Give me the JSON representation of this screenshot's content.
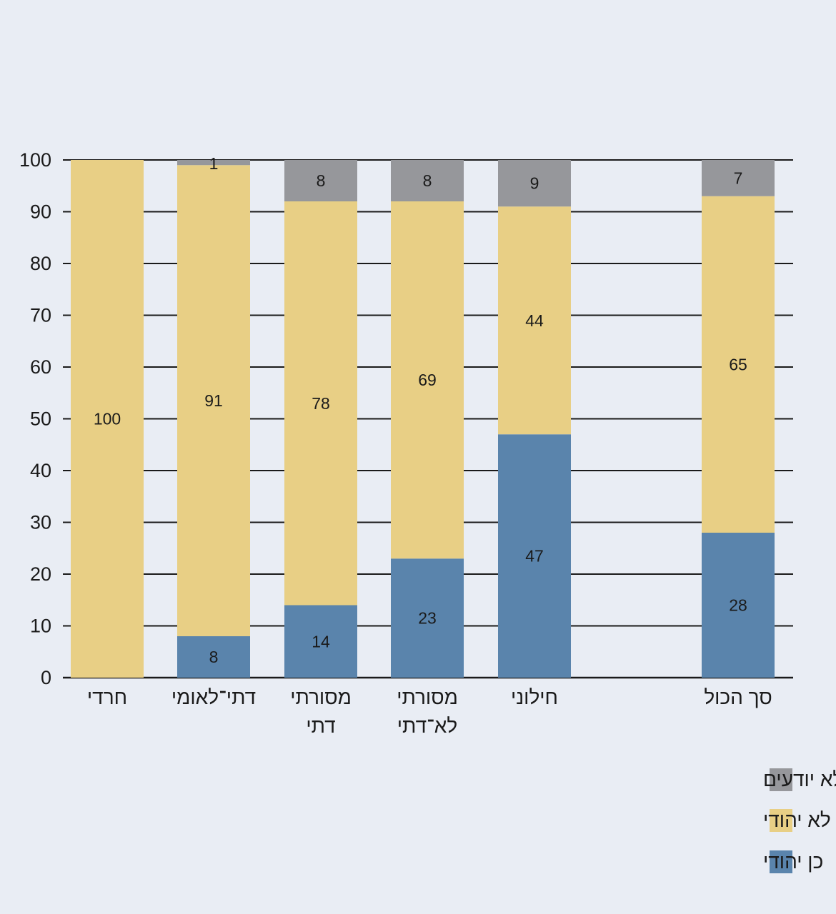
{
  "chart_data": {
    "type": "bar",
    "stacked": true,
    "orientation": "vertical",
    "direction": "rtl",
    "categories": [
      "סך הכול",
      "חילוני",
      "מסורתי לא־דתי",
      "מסורתי דתי",
      "דתי־לאומי",
      "חרדי"
    ],
    "category_lines": [
      [
        "סך הכול"
      ],
      [
        "חילוני"
      ],
      [
        "מסורתי",
        "לא־דתי"
      ],
      [
        "מסורתי",
        "דתי"
      ],
      [
        "דתי־לאומי"
      ],
      [
        "חרדי"
      ]
    ],
    "series": [
      {
        "name": "כן יהודי",
        "color": "#5a84ac",
        "values": [
          28,
          47,
          23,
          14,
          8,
          0
        ]
      },
      {
        "name": "לא יהודי",
        "color": "#e8cf85",
        "values": [
          65,
          44,
          69,
          78,
          91,
          100
        ]
      },
      {
        "name": "לא יודעים",
        "color": "#96979b",
        "values": [
          7,
          9,
          8,
          8,
          1,
          0
        ]
      }
    ],
    "yticks": [
      0,
      10,
      20,
      30,
      40,
      50,
      60,
      70,
      80,
      90,
      100
    ],
    "ylim": [
      0,
      100
    ],
    "grid": true,
    "legend": "bottom-right",
    "title": "",
    "xlabel": "",
    "ylabel": ""
  }
}
